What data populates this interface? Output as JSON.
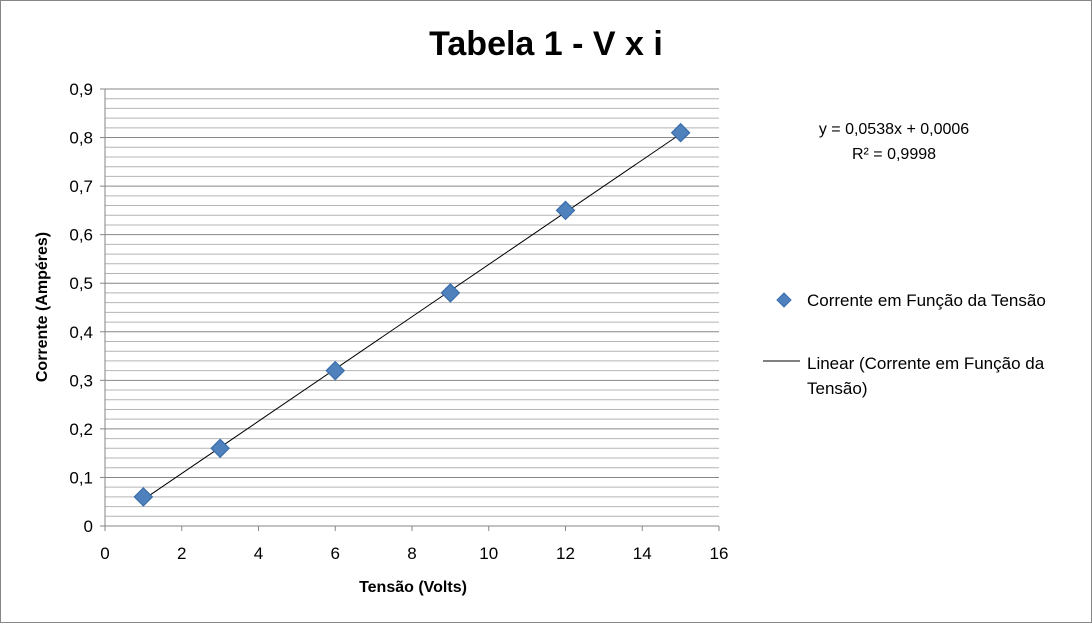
{
  "chart_data": {
    "type": "scatter",
    "title": "Tabela 1 - V x i",
    "xlabel": "Tensão (Volts)",
    "ylabel": "Corrente (Ampéres)",
    "xlim": [
      0,
      16
    ],
    "ylim": [
      0,
      0.9
    ],
    "x_ticks": [
      0,
      2,
      4,
      6,
      8,
      10,
      12,
      14,
      16
    ],
    "y_ticks": [
      0,
      0.1,
      0.2,
      0.3,
      0.4,
      0.5,
      0.6,
      0.7,
      0.8,
      0.9
    ],
    "x_tick_labels": [
      "0",
      "2",
      "4",
      "6",
      "8",
      "10",
      "12",
      "14",
      "16"
    ],
    "y_tick_labels": [
      "0",
      "0,1",
      "0,2",
      "0,3",
      "0,4",
      "0,5",
      "0,6",
      "0,7",
      "0,8",
      "0,9"
    ],
    "grid": true,
    "legend_position": "right",
    "series": [
      {
        "name": "Corrente em Função da Tensão",
        "marker": "diamond",
        "color": "#4F81BD",
        "x": [
          1,
          3,
          6,
          9,
          12,
          15
        ],
        "y": [
          0.06,
          0.16,
          0.32,
          0.48,
          0.65,
          0.81
        ]
      }
    ],
    "trendline": {
      "name_line1": "Linear (Corrente em Função da",
      "name_line2": "Tensão)",
      "type": "linear",
      "slope": 0.0538,
      "intercept": 0.0006,
      "x_range": [
        1,
        15
      ],
      "color": "#000000",
      "equation": "y = 0,0538x + 0,0006",
      "r_squared": "R² = 0,9998"
    }
  }
}
